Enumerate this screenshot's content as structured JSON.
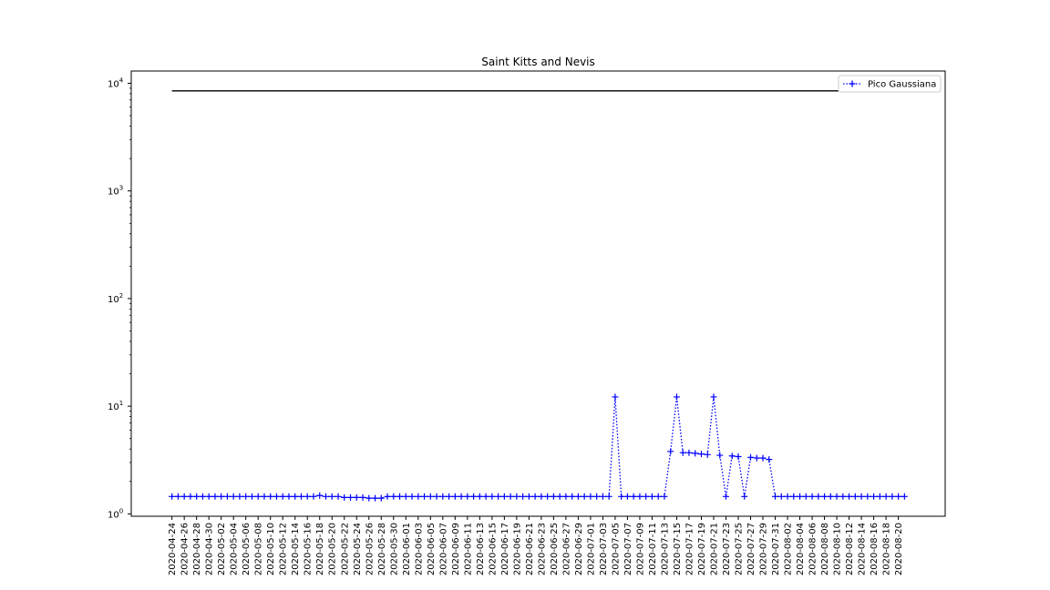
{
  "chart_data": {
    "type": "line",
    "title": "Saint Kitts and Nevis",
    "xlabel": "",
    "ylabel": "",
    "yscale": "log",
    "ylim": [
      0.95,
      13000
    ],
    "y_ticks": [
      {
        "value": 1,
        "base": "10",
        "exp": "0"
      },
      {
        "value": 10,
        "base": "10",
        "exp": "1"
      },
      {
        "value": 100,
        "base": "10",
        "exp": "2"
      },
      {
        "value": 1000,
        "base": "10",
        "exp": "3"
      },
      {
        "value": 10000,
        "base": "10",
        "exp": "4"
      }
    ],
    "grid": false,
    "legend_position": "top-right",
    "x_tick_labels": [
      "2020-04-24",
      "2020-04-26",
      "2020-04-28",
      "2020-04-30",
      "2020-05-02",
      "2020-05-04",
      "2020-05-06",
      "2020-05-08",
      "2020-05-10",
      "2020-05-12",
      "2020-05-14",
      "2020-05-16",
      "2020-05-18",
      "2020-05-20",
      "2020-05-22",
      "2020-05-24",
      "2020-05-26",
      "2020-05-28",
      "2020-05-30",
      "2020-06-01",
      "2020-06-03",
      "2020-06-05",
      "2020-06-07",
      "2020-06-09",
      "2020-06-11",
      "2020-06-13",
      "2020-06-15",
      "2020-06-17",
      "2020-06-19",
      "2020-06-21",
      "2020-06-23",
      "2020-06-25",
      "2020-06-27",
      "2020-06-29",
      "2020-07-01",
      "2020-07-03",
      "2020-07-05",
      "2020-07-07",
      "2020-07-09",
      "2020-07-11",
      "2020-07-13",
      "2020-07-15",
      "2020-07-17",
      "2020-07-19",
      "2020-07-21",
      "2020-07-23",
      "2020-07-25",
      "2020-07-27",
      "2020-07-29",
      "2020-07-31",
      "2020-08-02",
      "2020-08-04",
      "2020-08-06",
      "2020-08-08",
      "2020-08-10",
      "2020-08-12",
      "2020-08-14",
      "2020-08-16",
      "2020-08-18",
      "2020-08-20"
    ],
    "x_start": "2020-04-24",
    "x_end": "2020-08-21",
    "hline": {
      "y": 8500,
      "color": "#000000",
      "from": "2020-04-24",
      "to": "2020-08-21"
    },
    "series": [
      {
        "name": "Pico Gaussiana",
        "color": "#0000ff",
        "linestyle": "dotted",
        "marker": "+",
        "x": [
          "2020-04-24",
          "2020-04-25",
          "2020-04-26",
          "2020-04-27",
          "2020-04-28",
          "2020-04-29",
          "2020-04-30",
          "2020-05-01",
          "2020-05-02",
          "2020-05-03",
          "2020-05-04",
          "2020-05-05",
          "2020-05-06",
          "2020-05-07",
          "2020-05-08",
          "2020-05-09",
          "2020-05-10",
          "2020-05-11",
          "2020-05-12",
          "2020-05-13",
          "2020-05-14",
          "2020-05-15",
          "2020-05-16",
          "2020-05-17",
          "2020-05-18",
          "2020-05-19",
          "2020-05-20",
          "2020-05-21",
          "2020-05-22",
          "2020-05-23",
          "2020-05-24",
          "2020-05-25",
          "2020-05-26",
          "2020-05-27",
          "2020-05-28",
          "2020-05-29",
          "2020-05-30",
          "2020-05-31",
          "2020-06-01",
          "2020-06-02",
          "2020-06-03",
          "2020-06-04",
          "2020-06-05",
          "2020-06-06",
          "2020-06-07",
          "2020-06-08",
          "2020-06-09",
          "2020-06-10",
          "2020-06-11",
          "2020-06-12",
          "2020-06-13",
          "2020-06-14",
          "2020-06-15",
          "2020-06-16",
          "2020-06-17",
          "2020-06-18",
          "2020-06-19",
          "2020-06-20",
          "2020-06-21",
          "2020-06-22",
          "2020-06-23",
          "2020-06-24",
          "2020-06-25",
          "2020-06-26",
          "2020-06-27",
          "2020-06-28",
          "2020-06-29",
          "2020-06-30",
          "2020-07-01",
          "2020-07-02",
          "2020-07-03",
          "2020-07-04",
          "2020-07-05",
          "2020-07-06",
          "2020-07-07",
          "2020-07-08",
          "2020-07-09",
          "2020-07-10",
          "2020-07-11",
          "2020-07-12",
          "2020-07-13",
          "2020-07-14",
          "2020-07-15",
          "2020-07-16",
          "2020-07-17",
          "2020-07-18",
          "2020-07-19",
          "2020-07-20",
          "2020-07-21",
          "2020-07-22",
          "2020-07-23",
          "2020-07-24",
          "2020-07-25",
          "2020-07-26",
          "2020-07-27",
          "2020-07-28",
          "2020-07-29",
          "2020-07-30",
          "2020-07-31",
          "2020-08-01",
          "2020-08-02",
          "2020-08-03",
          "2020-08-04",
          "2020-08-05",
          "2020-08-06",
          "2020-08-07",
          "2020-08-08",
          "2020-08-09",
          "2020-08-10",
          "2020-08-11",
          "2020-08-12",
          "2020-08-13",
          "2020-08-14",
          "2020-08-15",
          "2020-08-16",
          "2020-08-17",
          "2020-08-18",
          "2020-08-19",
          "2020-08-20",
          "2020-08-21"
        ],
        "y": [
          1.45,
          1.45,
          1.45,
          1.45,
          1.45,
          1.45,
          1.45,
          1.45,
          1.45,
          1.45,
          1.45,
          1.45,
          1.45,
          1.45,
          1.45,
          1.45,
          1.45,
          1.45,
          1.45,
          1.45,
          1.45,
          1.45,
          1.45,
          1.45,
          1.48,
          1.45,
          1.45,
          1.45,
          1.42,
          1.42,
          1.42,
          1.42,
          1.4,
          1.4,
          1.4,
          1.45,
          1.45,
          1.45,
          1.45,
          1.45,
          1.45,
          1.45,
          1.45,
          1.45,
          1.45,
          1.45,
          1.45,
          1.45,
          1.45,
          1.45,
          1.45,
          1.45,
          1.45,
          1.45,
          1.45,
          1.45,
          1.45,
          1.45,
          1.45,
          1.45,
          1.45,
          1.45,
          1.45,
          1.45,
          1.45,
          1.45,
          1.45,
          1.45,
          1.45,
          1.45,
          1.45,
          1.45,
          12.2,
          1.45,
          1.45,
          1.45,
          1.45,
          1.45,
          1.45,
          1.45,
          1.45,
          3.8,
          12.2,
          3.7,
          3.7,
          3.65,
          3.6,
          3.55,
          12.2,
          3.5,
          1.45,
          3.45,
          3.4,
          1.45,
          3.35,
          3.3,
          3.3,
          3.2,
          1.45,
          1.45,
          1.45,
          1.45,
          1.45,
          1.45,
          1.45,
          1.45,
          1.45,
          1.45,
          1.45,
          1.45,
          1.45,
          1.45,
          1.45,
          1.45,
          1.45,
          1.45,
          1.45,
          1.45,
          1.45,
          1.45
        ]
      }
    ]
  }
}
